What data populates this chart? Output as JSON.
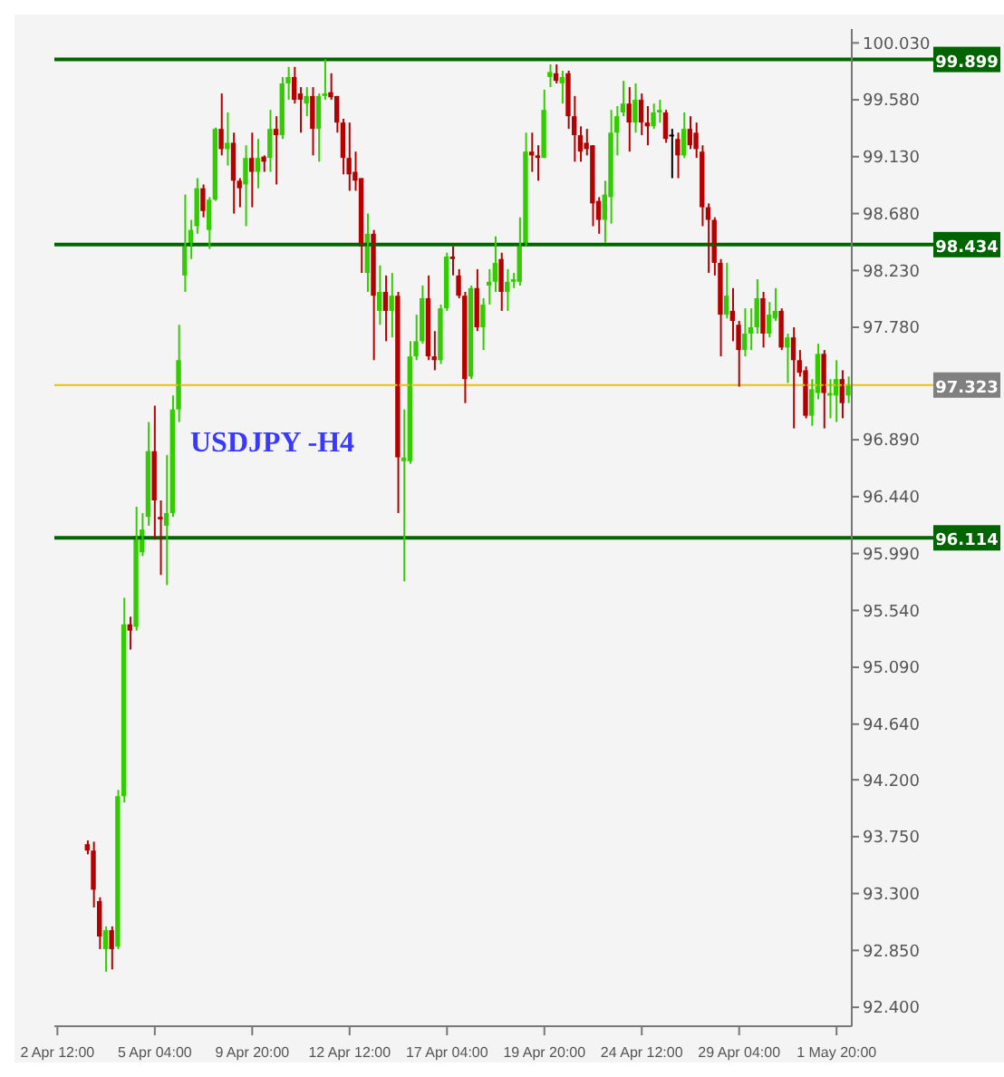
{
  "chart_data": {
    "type": "candlestick",
    "title": "USDJPY -H4",
    "categories": [
      "2 Apr 12:00",
      null,
      null,
      null,
      null,
      null,
      null,
      null,
      null,
      null,
      null,
      null,
      null,
      null,
      null,
      null,
      "5 Apr 04:00",
      null,
      null,
      null,
      null,
      null,
      null,
      null,
      null,
      null,
      null,
      null,
      null,
      null,
      null,
      null,
      "9 Apr 20:00",
      null,
      null,
      null,
      null,
      null,
      null,
      null,
      null,
      null,
      null,
      null,
      null,
      null,
      null,
      null,
      "12 Apr 12:00",
      null,
      null,
      null,
      null,
      null,
      null,
      null,
      null,
      null,
      null,
      null,
      null,
      null,
      null,
      null,
      "17 Apr 04:00",
      null,
      null,
      null,
      null,
      null,
      null,
      null,
      null,
      null,
      null,
      null,
      null,
      null,
      null,
      null,
      "19 Apr 20:00",
      null,
      null,
      null,
      null,
      null,
      null,
      null,
      null,
      null,
      null,
      null,
      null,
      null,
      null,
      null,
      "24 Apr 12:00",
      null,
      null,
      null,
      null,
      null,
      null,
      null,
      null,
      null,
      null,
      null,
      null,
      null,
      null,
      null,
      "29 Apr 04:00",
      null,
      null,
      null,
      null,
      null,
      null,
      null,
      null,
      null,
      null,
      null,
      null,
      null,
      null,
      null,
      "1 May 20:00",
      null,
      null
    ],
    "ohlc": [
      null,
      null,
      null,
      null,
      null,
      [
        93.69,
        93.72,
        93.61,
        93.64
      ],
      [
        93.64,
        93.71,
        93.19,
        93.33
      ],
      [
        93.24,
        93.27,
        92.86,
        92.96
      ],
      [
        92.86,
        93.04,
        92.68,
        93.01
      ],
      [
        93.01,
        93.04,
        92.7,
        92.86
      ],
      [
        92.88,
        94.12,
        92.86,
        94.07
      ],
      [
        94.07,
        95.64,
        94.02,
        95.43
      ],
      [
        95.43,
        95.49,
        95.23,
        95.38
      ],
      [
        95.41,
        96.36,
        95.38,
        96.13
      ],
      [
        96.0,
        96.31,
        95.97,
        96.18
      ],
      [
        96.28,
        97.03,
        96.21,
        96.8
      ],
      [
        96.8,
        97.16,
        96.1,
        96.41
      ],
      [
        96.28,
        96.41,
        95.82,
        96.26
      ],
      [
        96.21,
        96.77,
        95.74,
        96.31
      ],
      [
        96.31,
        97.24,
        96.28,
        97.13
      ],
      [
        97.13,
        97.8,
        97.03,
        97.52
      ],
      [
        98.19,
        98.83,
        98.06,
        98.42
      ],
      [
        98.42,
        98.63,
        98.32,
        98.55
      ],
      [
        98.58,
        98.96,
        98.52,
        98.88
      ],
      [
        98.88,
        98.91,
        98.65,
        98.7
      ],
      [
        98.55,
        98.81,
        98.4,
        98.79
      ],
      [
        98.79,
        99.36,
        98.78,
        99.35
      ],
      [
        99.35,
        99.63,
        99.14,
        99.19
      ],
      [
        99.19,
        99.48,
        99.06,
        99.24
      ],
      [
        99.24,
        99.32,
        98.68,
        98.94
      ],
      [
        98.94,
        98.96,
        98.73,
        98.88
      ],
      [
        98.91,
        99.22,
        98.58,
        99.12
      ],
      [
        99.12,
        99.32,
        98.73,
        99.01
      ],
      [
        99.01,
        99.27,
        98.88,
        99.12
      ],
      [
        99.13,
        99.14,
        99.01,
        99.09
      ],
      [
        99.12,
        99.5,
        99.01,
        99.35
      ],
      [
        99.35,
        99.45,
        98.91,
        99.3
      ],
      [
        99.3,
        99.76,
        99.27,
        99.71
      ],
      [
        99.71,
        99.84,
        99.58,
        99.76
      ],
      [
        99.76,
        99.84,
        99.55,
        99.58
      ],
      [
        99.63,
        99.68,
        99.32,
        99.58
      ],
      [
        99.55,
        99.68,
        99.45,
        99.61
      ],
      [
        99.61,
        99.68,
        99.14,
        99.35
      ],
      [
        99.35,
        99.63,
        99.09,
        99.61
      ],
      [
        99.61,
        99.9,
        99.58,
        99.63
      ],
      [
        99.64,
        99.79,
        99.58,
        99.6
      ],
      [
        99.61,
        99.61,
        99.32,
        99.4
      ],
      [
        99.4,
        99.43,
        98.99,
        99.12
      ],
      [
        99.12,
        99.4,
        98.86,
        98.99
      ],
      [
        99.01,
        99.17,
        98.86,
        98.94
      ],
      [
        98.96,
        98.96,
        98.21,
        98.42
      ],
      [
        98.21,
        98.68,
        98.06,
        98.52
      ],
      [
        98.52,
        98.55,
        97.52,
        98.03
      ],
      [
        97.91,
        98.27,
        97.8,
        98.06
      ],
      [
        98.06,
        98.19,
        97.67,
        97.91
      ],
      [
        97.91,
        98.21,
        97.7,
        98.03
      ],
      [
        98.03,
        98.06,
        96.31,
        96.75
      ],
      [
        96.72,
        97.13,
        95.77,
        96.75
      ],
      [
        96.72,
        97.67,
        96.7,
        97.55
      ],
      [
        97.55,
        97.88,
        97.52,
        97.67
      ],
      [
        97.67,
        98.11,
        97.65,
        98.01
      ],
      [
        98.01,
        98.19,
        97.52,
        97.55
      ],
      [
        97.55,
        97.75,
        97.44,
        97.52
      ],
      [
        97.52,
        97.96,
        97.49,
        97.93
      ],
      [
        97.93,
        98.37,
        97.91,
        98.34
      ],
      [
        98.34,
        98.42,
        98.19,
        98.32
      ],
      [
        98.19,
        98.24,
        98.01,
        98.03
      ],
      [
        98.03,
        98.06,
        97.18,
        97.37
      ],
      [
        97.39,
        98.11,
        97.37,
        98.09
      ],
      [
        98.09,
        98.24,
        97.75,
        97.78
      ],
      [
        97.78,
        98.01,
        97.6,
        97.96
      ],
      [
        98.11,
        98.24,
        97.96,
        98.14
      ],
      [
        98.14,
        98.5,
        98.06,
        98.29
      ],
      [
        98.32,
        98.37,
        97.91,
        98.06
      ],
      [
        98.06,
        98.24,
        97.91,
        98.14
      ],
      [
        98.14,
        98.21,
        98.09,
        98.16
      ],
      [
        98.14,
        98.65,
        98.11,
        98.42
      ],
      [
        98.42,
        99.32,
        98.42,
        99.17
      ],
      [
        99.17,
        99.32,
        99.01,
        99.14
      ],
      [
        99.14,
        99.22,
        98.94,
        99.12
      ],
      [
        99.12,
        99.66,
        99.12,
        99.5
      ],
      [
        99.76,
        99.86,
        99.68,
        99.8
      ],
      [
        99.79,
        99.86,
        99.71,
        99.73
      ],
      [
        99.71,
        99.81,
        99.55,
        99.76
      ],
      [
        99.79,
        99.81,
        99.35,
        99.45
      ],
      [
        99.45,
        99.61,
        99.09,
        99.3
      ],
      [
        99.3,
        99.37,
        99.09,
        99.17
      ],
      [
        99.24,
        99.35,
        99.14,
        99.19
      ],
      [
        99.22,
        99.22,
        98.58,
        98.76
      ],
      [
        98.78,
        98.81,
        98.52,
        98.63
      ],
      [
        98.63,
        98.94,
        98.45,
        98.83
      ],
      [
        98.81,
        99.5,
        98.6,
        99.32
      ],
      [
        99.32,
        99.53,
        99.14,
        99.45
      ],
      [
        99.48,
        99.73,
        99.45,
        99.55
      ],
      [
        99.55,
        99.68,
        99.17,
        99.4
      ],
      [
        99.4,
        99.71,
        99.32,
        99.58
      ],
      [
        99.58,
        99.63,
        99.3,
        99.4
      ],
      [
        99.4,
        99.53,
        99.22,
        99.37
      ],
      [
        99.37,
        99.55,
        99.35,
        99.48
      ],
      [
        99.48,
        99.58,
        99.4,
        99.5
      ],
      [
        99.48,
        99.5,
        99.24,
        99.27
      ],
      [
        99.29,
        99.35,
        98.96,
        99.29
      ],
      [
        99.27,
        99.32,
        98.96,
        99.14
      ],
      [
        99.14,
        99.48,
        99.12,
        99.35
      ],
      [
        99.35,
        99.45,
        99.19,
        99.22
      ],
      [
        99.32,
        99.4,
        99.12,
        99.19
      ],
      [
        99.17,
        99.22,
        98.58,
        98.73
      ],
      [
        98.73,
        98.76,
        98.21,
        98.63
      ],
      [
        98.63,
        98.65,
        98.19,
        98.29
      ],
      [
        98.29,
        98.32,
        97.55,
        97.88
      ],
      [
        97.88,
        98.29,
        97.85,
        98.03
      ],
      [
        97.91,
        98.09,
        97.67,
        97.83
      ],
      [
        97.8,
        97.83,
        97.31,
        97.6
      ],
      [
        97.6,
        97.93,
        97.55,
        97.73
      ],
      [
        97.73,
        97.93,
        97.6,
        97.78
      ],
      [
        97.78,
        98.16,
        97.73,
        98.01
      ],
      [
        98.01,
        98.06,
        97.62,
        97.73
      ],
      [
        97.73,
        97.98,
        97.7,
        97.88
      ],
      [
        97.85,
        98.09,
        97.83,
        97.91
      ],
      [
        97.91,
        97.93,
        97.6,
        97.62
      ],
      [
        97.62,
        97.73,
        97.34,
        97.7
      ],
      [
        97.7,
        97.78,
        96.98,
        97.52
      ],
      [
        97.52,
        97.6,
        97.39,
        97.42
      ],
      [
        97.44,
        97.47,
        97.06,
        97.08
      ],
      [
        97.08,
        97.37,
        97.0,
        97.29
      ],
      [
        97.26,
        97.65,
        97.21,
        97.57
      ],
      [
        97.57,
        97.6,
        96.98,
        97.26
      ],
      [
        97.24,
        97.37,
        97.06,
        97.26
      ],
      [
        97.24,
        97.52,
        97.03,
        97.37
      ],
      [
        97.37,
        97.44,
        97.06,
        97.18
      ],
      [
        97.24,
        97.39,
        97.18,
        97.323
      ]
    ],
    "colors": [
      null,
      null,
      null,
      null,
      null,
      "#b40000",
      "#b40000",
      "#b40000",
      "#33cc00",
      "#b40000",
      "#33cc00",
      "#33cc00",
      "#b40000",
      "#33cc00",
      "#33cc00",
      "#33cc00",
      "#b40000",
      "#b40000",
      "#33cc00",
      "#33cc00",
      "#33cc00",
      "#33cc00",
      "#33cc00",
      "#33cc00",
      "#b40000",
      "#33cc00",
      "#33cc00",
      "#b40000",
      "#33cc00",
      "#b40000",
      "#b40000",
      "#33cc00",
      "#b40000",
      "#33cc00",
      "#b40000",
      "#33cc00",
      "#b40000",
      "#33cc00",
      "#33cc00",
      "#b40000",
      "#b40000",
      "#33cc00",
      "#b40000",
      "#33cc00",
      "#33cc00",
      "#b40000",
      "#b40000",
      "#b40000",
      "#b40000",
      "#b40000",
      "#b40000",
      "#33cc00",
      "#b40000",
      "#33cc00",
      "#b40000",
      "#33cc00",
      "#b40000",
      "#33cc00",
      "#33cc00",
      "#33cc00",
      "#33cc00",
      "#b40000",
      "#b40000",
      "#33cc00",
      "#33cc00",
      "#b40000",
      "#b40000",
      "#b40000",
      "#33cc00",
      "#b40000",
      "#33cc00",
      "#33cc00",
      "#33cc00",
      "#b40000",
      "#33cc00",
      "#33cc00",
      "#33cc00",
      "#33cc00",
      "#b40000",
      "#b40000",
      "#33cc00",
      "#33cc00",
      "#b40000",
      "#33cc00",
      "#b40000",
      "#b40000",
      "#b40000",
      "#b40000",
      "#b40000",
      "#b40000",
      "#33cc00",
      "#33cc00",
      "#33cc00",
      "#33cc00",
      "#b40000",
      "#33cc00",
      "#b40000",
      "#b40000",
      "#33cc00",
      "#33cc00",
      "#b40000",
      "#000000",
      "#b40000",
      "#33cc00",
      "#b40000",
      "#b40000",
      "#b40000",
      "#b40000",
      "#b40000",
      "#b40000",
      "#33cc00",
      "#b40000",
      "#b40000",
      "#33cc00",
      "#33cc00",
      "#33cc00",
      "#b40000",
      "#33cc00",
      "#33cc00",
      "#b40000",
      "#33cc00",
      "#b40000",
      "#b40000",
      "#b40000",
      "#33cc00",
      "#33cc00",
      "#b40000",
      "#33cc00",
      "#33cc00",
      "#b40000",
      "#33cc00"
    ],
    "ylim": [
      92.25,
      100.14
    ],
    "yticks": [
      {
        "value": 100.03,
        "label": "100.030"
      },
      {
        "value": 99.58,
        "label": "99.580"
      },
      {
        "value": 99.13,
        "label": "99.130"
      },
      {
        "value": 98.68,
        "label": "98.680"
      },
      {
        "value": 98.23,
        "label": "98.230"
      },
      {
        "value": 97.78,
        "label": "97.780"
      },
      {
        "value": 96.89,
        "label": "96.890"
      },
      {
        "value": 96.44,
        "label": "96.440"
      },
      {
        "value": 95.99,
        "label": "95.990"
      },
      {
        "value": 95.54,
        "label": "95.540"
      },
      {
        "value": 95.09,
        "label": "95.090"
      },
      {
        "value": 94.64,
        "label": "94.640"
      },
      {
        "value": 94.2,
        "label": "94.200"
      },
      {
        "value": 93.75,
        "label": "93.750"
      },
      {
        "value": 93.3,
        "label": "93.300"
      },
      {
        "value": 92.85,
        "label": "92.850"
      },
      {
        "value": 92.4,
        "label": "92.400"
      }
    ],
    "ref_lines": [
      {
        "axis": "y",
        "value": 99.899,
        "label": "99.899",
        "color": "#006400"
      },
      {
        "axis": "y",
        "value": 98.434,
        "label": "98.434",
        "color": "#006400"
      },
      {
        "axis": "y",
        "value": 97.323,
        "label": "97.323",
        "color": "#e6c200"
      },
      {
        "axis": "y",
        "value": 96.114,
        "label": "96.114",
        "color": "#006400"
      }
    ]
  }
}
